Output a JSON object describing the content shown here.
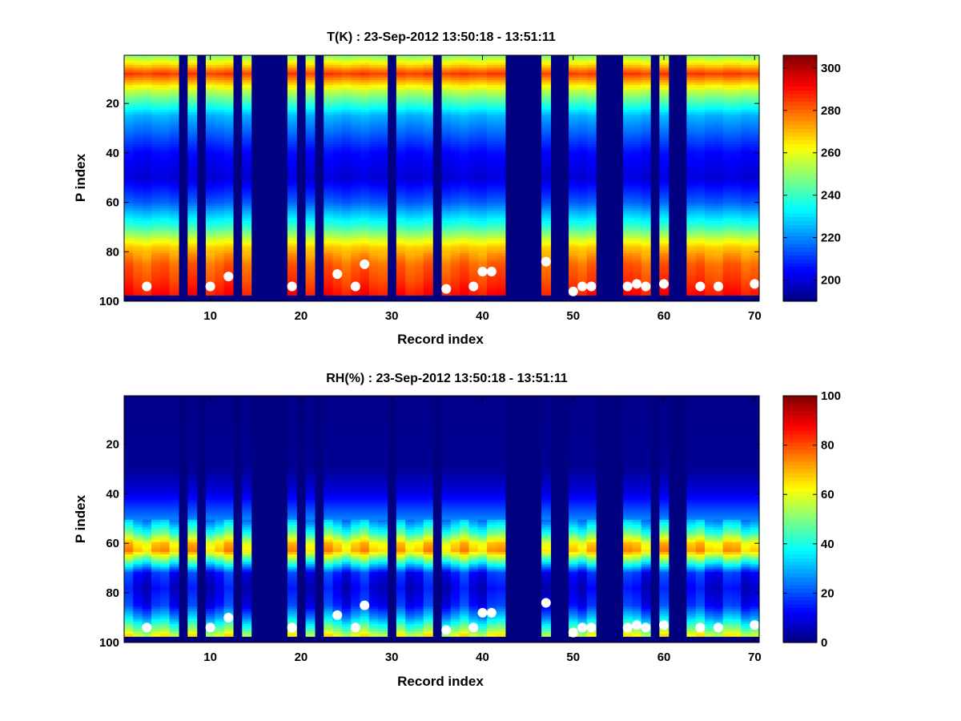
{
  "chart_data": [
    {
      "type": "heatmap",
      "title": "T(K) : 23-Sep-2012 13:50:18 - 13:51:11",
      "xlabel": "Record index",
      "ylabel": "P index",
      "xlim": [
        0.5,
        70.5
      ],
      "ylim": [
        100,
        0.5
      ],
      "xticks": [
        10,
        20,
        30,
        40,
        50,
        60,
        70
      ],
      "yticks": [
        20,
        40,
        60,
        80,
        100
      ],
      "colormap": "jet",
      "colorbar": {
        "range": [
          190,
          306
        ],
        "ticks": [
          200,
          220,
          240,
          260,
          280,
          300
        ]
      },
      "profile_levels": [
        1,
        8,
        15,
        25,
        40,
        50,
        60,
        70,
        78,
        85,
        92,
        97
      ],
      "profile_values": [
        250,
        285,
        255,
        225,
        205,
        200,
        215,
        240,
        268,
        280,
        285,
        290
      ],
      "missing_records": [
        7,
        9,
        13,
        15,
        16,
        17,
        18,
        20,
        22,
        30,
        35,
        43,
        44,
        45,
        46,
        48,
        49,
        53,
        54,
        55,
        59,
        61,
        62
      ],
      "markers": {
        "records": [
          3,
          10,
          12,
          19,
          24,
          26,
          27,
          36,
          39,
          40,
          41,
          47,
          50,
          51,
          52,
          56,
          57,
          58,
          60,
          64,
          66,
          70
        ],
        "p_index": [
          94,
          94,
          90,
          94,
          89,
          94,
          85,
          95,
          94,
          88,
          88,
          84,
          96,
          94,
          94,
          94,
          93,
          94,
          93,
          94,
          94,
          93
        ]
      }
    },
    {
      "type": "heatmap",
      "title": "RH(%) : 23-Sep-2012 13:50:18 - 13:51:11",
      "xlabel": "Record index",
      "ylabel": "P index",
      "xlim": [
        0.5,
        70.5
      ],
      "ylim": [
        100,
        0.5
      ],
      "xticks": [
        10,
        20,
        30,
        40,
        50,
        60,
        70
      ],
      "yticks": [
        20,
        40,
        60,
        80,
        100
      ],
      "colormap": "jet",
      "colorbar": {
        "range": [
          0,
          100
        ],
        "ticks": [
          0,
          20,
          40,
          60,
          80,
          100
        ]
      },
      "profile_levels": [
        1,
        30,
        40,
        50,
        56,
        60,
        63,
        67,
        72,
        78,
        85,
        90,
        95,
        97
      ],
      "profile_values": [
        1,
        2,
        10,
        25,
        45,
        65,
        70,
        45,
        15,
        10,
        15,
        30,
        50,
        60
      ],
      "missing_records": [
        7,
        9,
        13,
        15,
        16,
        17,
        18,
        20,
        22,
        30,
        35,
        43,
        44,
        45,
        46,
        48,
        49,
        53,
        54,
        55,
        59,
        61,
        62
      ],
      "markers": {
        "records": [
          3,
          10,
          12,
          19,
          24,
          26,
          27,
          36,
          39,
          40,
          41,
          47,
          50,
          51,
          52,
          56,
          57,
          58,
          60,
          64,
          66,
          70
        ],
        "p_index": [
          94,
          94,
          90,
          94,
          89,
          94,
          85,
          95,
          94,
          88,
          88,
          84,
          96,
          94,
          94,
          94,
          93,
          94,
          93,
          94,
          94,
          93
        ]
      }
    }
  ]
}
